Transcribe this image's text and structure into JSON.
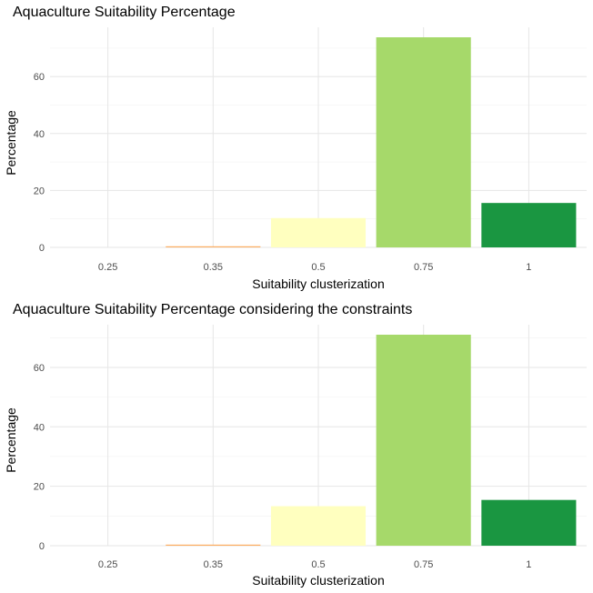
{
  "chart_data": [
    {
      "type": "bar",
      "title": "Aquaculture Suitability Percentage",
      "xlabel": "Suitability clusterization",
      "ylabel": "Percentage",
      "categories": [
        "0.25",
        "0.35",
        "0.5",
        "0.75",
        "1"
      ],
      "values": [
        0,
        0.3,
        10.3,
        73.8,
        15.6
      ],
      "colors": [
        "#d7191c",
        "#fdae61",
        "#ffffbf",
        "#a6d96a",
        "#1a9641"
      ],
      "yticks": [
        0,
        20,
        40,
        60
      ],
      "ylim": [
        0,
        73.8
      ],
      "grid": true,
      "legend": "none"
    },
    {
      "type": "bar",
      "title": "Aquaculture Suitability Percentage considering the constraints",
      "xlabel": "Suitability clusterization",
      "ylabel": "Percentage",
      "categories": [
        "0.25",
        "0.35",
        "0.5",
        "0.75",
        "1"
      ],
      "values": [
        0,
        0.3,
        13.3,
        71.0,
        15.4
      ],
      "colors": [
        "#d7191c",
        "#fdae61",
        "#ffffbf",
        "#a6d96a",
        "#1a9641"
      ],
      "yticks": [
        0,
        20,
        40,
        60
      ],
      "ylim": [
        0,
        71.0
      ],
      "grid": true,
      "legend": "none"
    }
  ]
}
